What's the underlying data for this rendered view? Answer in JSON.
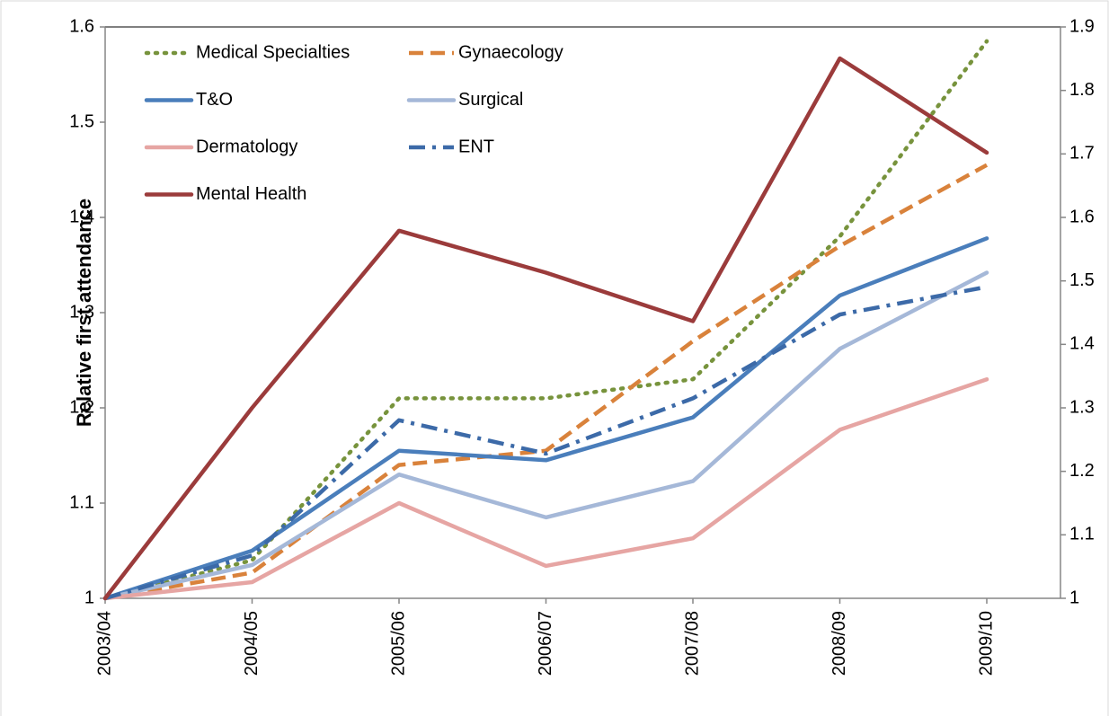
{
  "chart_data": {
    "type": "line",
    "y_label": "Relative first attendance",
    "categories": [
      "2003/04",
      "2004/05",
      "2005/06",
      "2006/07",
      "2007/08",
      "2008/09",
      "2009/10"
    ],
    "ylim": [
      1,
      1.6
    ],
    "yticks": [
      1,
      1.1,
      1.2,
      1.3,
      1.4,
      1.5,
      1.6
    ],
    "y2lim": [
      1,
      1.9
    ],
    "y2ticks": [
      1,
      1.1,
      1.2,
      1.3,
      1.4,
      1.5,
      1.6,
      1.7,
      1.8,
      1.9
    ],
    "series": [
      {
        "name": "Medical Specialties",
        "color": "#77933c",
        "line_style": "dotted",
        "values": [
          1,
          1.04,
          1.21,
          1.21,
          1.23,
          1.38,
          1.585
        ]
      },
      {
        "name": "Gynaecology",
        "color": "#d9823b",
        "line_style": "dashed",
        "values": [
          1,
          1.027,
          1.14,
          1.155,
          1.27,
          1.37,
          1.455
        ]
      },
      {
        "name": "T&O",
        "color": "#4a7ebb",
        "line_style": "solid",
        "values": [
          1,
          1.05,
          1.155,
          1.145,
          1.19,
          1.318,
          1.378
        ]
      },
      {
        "name": "Surgical",
        "color": "#a5b8d8",
        "line_style": "solid",
        "values": [
          1,
          1.035,
          1.13,
          1.085,
          1.123,
          1.262,
          1.342
        ]
      },
      {
        "name": "Dermatology",
        "color": "#e6a5a3",
        "line_style": "solid",
        "values": [
          1,
          1.017,
          1.1,
          1.034,
          1.063,
          1.177,
          1.23
        ]
      },
      {
        "name": "ENT",
        "color": "#3c6aa8",
        "line_style": "dashdot",
        "values": [
          1,
          1.045,
          1.187,
          1.152,
          1.21,
          1.298,
          1.327
        ]
      },
      {
        "name": "Mental Health",
        "color": "#9b3b3b",
        "line_style": "solid",
        "values": [
          1,
          1.2,
          1.386,
          1.342,
          1.291,
          1.567,
          1.468
        ]
      }
    ]
  }
}
